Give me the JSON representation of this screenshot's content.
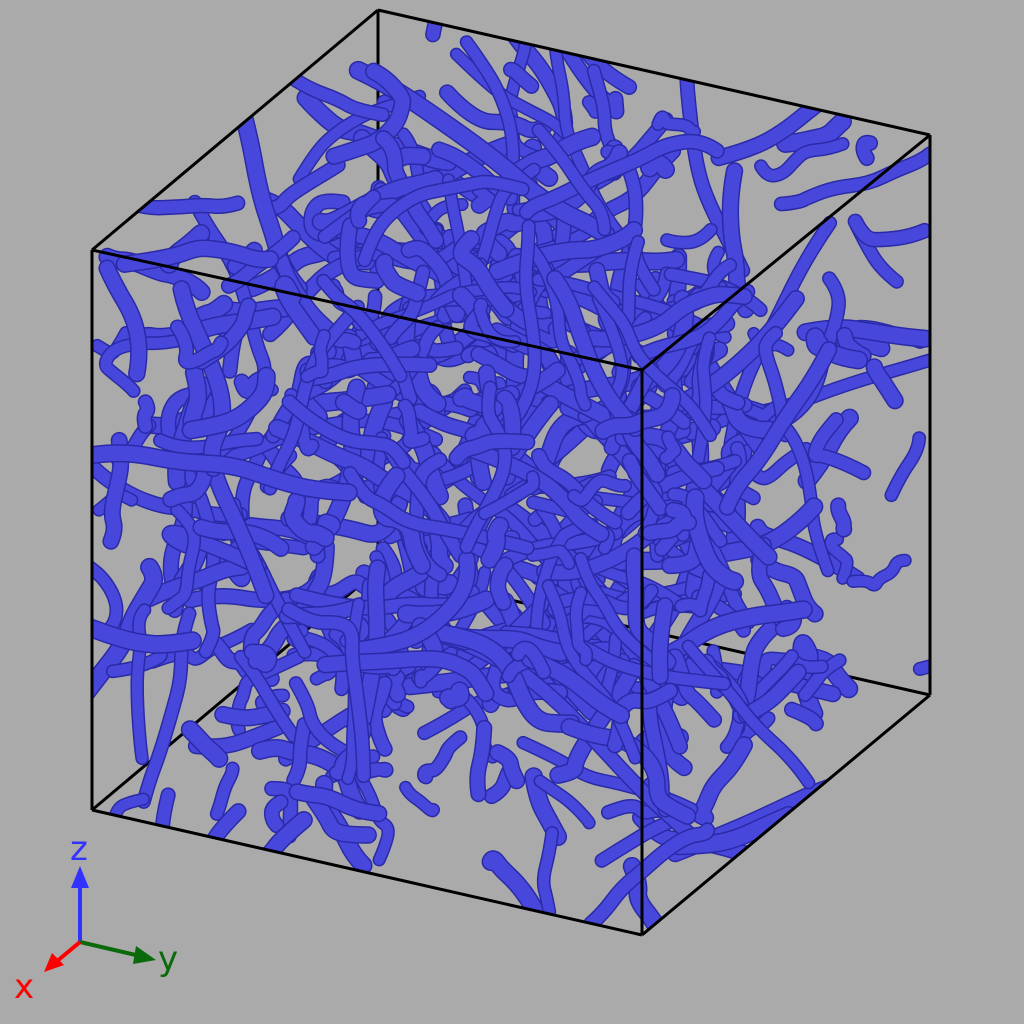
{
  "scene": {
    "background_color": "#aaaaaa",
    "surface_color": "#4a4ae0",
    "surface_edge_color": "#2a2aa8",
    "bounding_box_color": "#000000",
    "object": "isosurface-tube-network"
  },
  "orientation_axes": {
    "z": {
      "label": "z",
      "color": "#3333ff"
    },
    "y": {
      "label": "y",
      "color": "#0a6a0a"
    },
    "x": {
      "label": "x",
      "color": "#ff0000"
    }
  }
}
